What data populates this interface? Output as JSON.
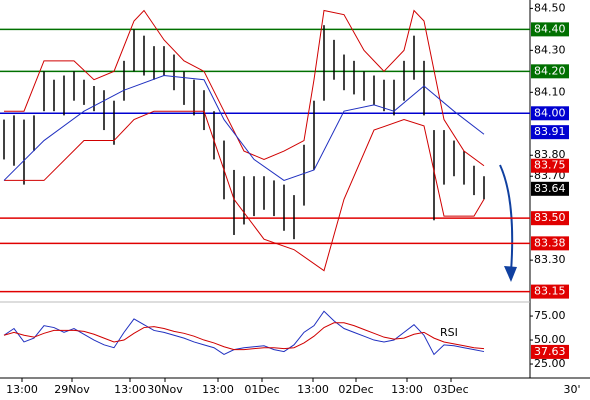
{
  "chart_data": [
    {
      "type": "range",
      "high": [
        83.97,
        83.99,
        83.97,
        83.99,
        84.2,
        84.16,
        84.18,
        84.2,
        84.16,
        84.13,
        84.11,
        84.06,
        84.25,
        84.4,
        84.37,
        84.32,
        84.32,
        84.28,
        84.2,
        84.16,
        84.11,
        84.01,
        83.87,
        83.73,
        83.7,
        83.7,
        83.7,
        83.68,
        83.66,
        83.61,
        83.85,
        84.06,
        84.42,
        84.35,
        84.28,
        84.25,
        84.2,
        84.18,
        84.16,
        84.16,
        84.25,
        84.37,
        84.25,
        83.92,
        83.92,
        83.87,
        83.82,
        83.75,
        83.7
      ],
      "low": [
        83.78,
        83.75,
        83.66,
        83.82,
        84.01,
        84.01,
        83.99,
        84.06,
        84.04,
        84.01,
        83.92,
        83.85,
        84.06,
        84.2,
        84.18,
        84.16,
        84.18,
        84.11,
        84.04,
        83.99,
        83.92,
        83.78,
        83.59,
        83.42,
        83.47,
        83.51,
        83.54,
        83.51,
        83.44,
        83.4,
        83.56,
        83.73,
        84.06,
        84.16,
        84.11,
        84.09,
        84.06,
        84.04,
        84.01,
        83.99,
        84.06,
        84.16,
        83.99,
        83.49,
        83.66,
        83.7,
        83.66,
        83.61,
        83.59
      ],
      "color": "#000000",
      "overlays": [
        {
          "color": "#d00000",
          "x": [
            0,
            2,
            4,
            7,
            9,
            11,
            13,
            14,
            16,
            18,
            20,
            22,
            24,
            26,
            28,
            30,
            31,
            32,
            34,
            36,
            38,
            40,
            41,
            42,
            44,
            46,
            48
          ],
          "values": [
            84.01,
            84.01,
            84.25,
            84.25,
            84.16,
            84.2,
            84.44,
            84.49,
            84.35,
            84.25,
            84.2,
            84.01,
            83.82,
            83.78,
            83.82,
            83.87,
            84.16,
            84.49,
            84.47,
            84.3,
            84.2,
            84.3,
            84.49,
            84.44,
            83.97,
            83.82,
            83.75
          ]
        },
        {
          "color": "#d00000",
          "x": [
            0,
            4,
            8,
            11,
            13,
            15,
            20,
            23,
            26,
            29,
            32,
            34,
            37,
            40,
            42,
            44,
            47,
            48
          ],
          "values": [
            83.68,
            83.68,
            83.87,
            83.87,
            83.97,
            84.01,
            84.01,
            83.59,
            83.4,
            83.35,
            83.25,
            83.59,
            83.92,
            83.97,
            83.94,
            83.51,
            83.51,
            83.59
          ]
        },
        {
          "color": "#2030c0",
          "x": [
            0,
            4,
            8,
            12,
            16,
            20,
            22,
            25,
            28,
            31,
            34,
            37,
            39,
            42,
            45,
            48
          ],
          "values": [
            83.68,
            83.87,
            84.01,
            84.11,
            84.18,
            84.16,
            83.97,
            83.78,
            83.68,
            83.73,
            84.01,
            84.04,
            84.01,
            84.13,
            84.01,
            83.9
          ]
        }
      ],
      "levels": [
        {
          "value": 84.4,
          "label": "84.40",
          "color": "#007000",
          "line": true
        },
        {
          "value": 84.2,
          "label": "84.20",
          "color": "#007000",
          "line": true
        },
        {
          "value": 84.0,
          "label": "84.00",
          "color": "#0000d0",
          "line": true
        },
        {
          "value": 83.91,
          "label": "83.91",
          "color": "#0000d0",
          "line": false
        },
        {
          "value": 83.75,
          "label": "83.75",
          "color": "#e00000",
          "line": false
        },
        {
          "value": 83.64,
          "label": "83.64",
          "color": "#000000",
          "line": false
        },
        {
          "value": 83.5,
          "label": "83.50",
          "color": "#e00000",
          "line": true
        },
        {
          "value": 83.38,
          "label": "83.38",
          "color": "#e00000",
          "line": true
        },
        {
          "value": 83.15,
          "label": "83.15",
          "color": "#e00000",
          "line": true
        }
      ],
      "ylim": [
        83.11,
        84.54
      ],
      "yticks": [
        {
          "value": 84.5,
          "label": "84.50"
        },
        {
          "value": 84.3,
          "label": "84.30"
        },
        {
          "value": 84.1,
          "label": "84.10"
        },
        {
          "value": 83.8,
          "label": "83.80"
        },
        {
          "value": 83.7,
          "label": "83.70"
        },
        {
          "value": 83.3,
          "label": "83.30"
        }
      ],
      "xlim": [
        -0.4,
        52.6
      ],
      "xticks": [
        {
          "value": 1.8,
          "label": "13:00"
        },
        {
          "value": 6.8,
          "label": "29Nov"
        },
        {
          "value": 12.6,
          "label": "13:00"
        },
        {
          "value": 16.1,
          "label": "30Nov"
        },
        {
          "value": 21.4,
          "label": "13:00"
        },
        {
          "value": 25.8,
          "label": "01Dec"
        },
        {
          "value": 30.9,
          "label": "13:00"
        },
        {
          "value": 35.2,
          "label": "02Dec"
        },
        {
          "value": 40.3,
          "label": "13:00"
        },
        {
          "value": 44.7,
          "label": "03Dec"
        }
      ],
      "timeframe": "30'"
    },
    {
      "type": "line",
      "title": "RSI",
      "series": [
        {
          "color": "#2030c0",
          "values": [
            55,
            62,
            48,
            52,
            65,
            63,
            58,
            62,
            56,
            50,
            45,
            42,
            58,
            72,
            66,
            60,
            58,
            55,
            52,
            48,
            45,
            42,
            35,
            40,
            42,
            43,
            44,
            40,
            38,
            45,
            58,
            65,
            80,
            70,
            62,
            58,
            54,
            50,
            48,
            50,
            58,
            66,
            55,
            35,
            45,
            44,
            42,
            40,
            38
          ]
        },
        {
          "color": "#d00000",
          "values": [
            55,
            58,
            55,
            53,
            57,
            60,
            60,
            60,
            59,
            56,
            52,
            48,
            50,
            57,
            63,
            64,
            62,
            59,
            57,
            54,
            50,
            47,
            43,
            40,
            40,
            41,
            42,
            42,
            41,
            42,
            47,
            54,
            63,
            68,
            68,
            65,
            61,
            57,
            53,
            51,
            52,
            56,
            58,
            52,
            48,
            46,
            44,
            42,
            41
          ]
        }
      ],
      "current": {
        "value": 37.63,
        "label": "37.63",
        "color": "#e00000"
      },
      "ylim": [
        16.7,
        86.5
      ],
      "yticks": [
        {
          "value": 75,
          "label": "75.00"
        },
        {
          "value": 50,
          "label": "50.00"
        },
        {
          "value": 25,
          "label": "25.00"
        }
      ]
    }
  ]
}
